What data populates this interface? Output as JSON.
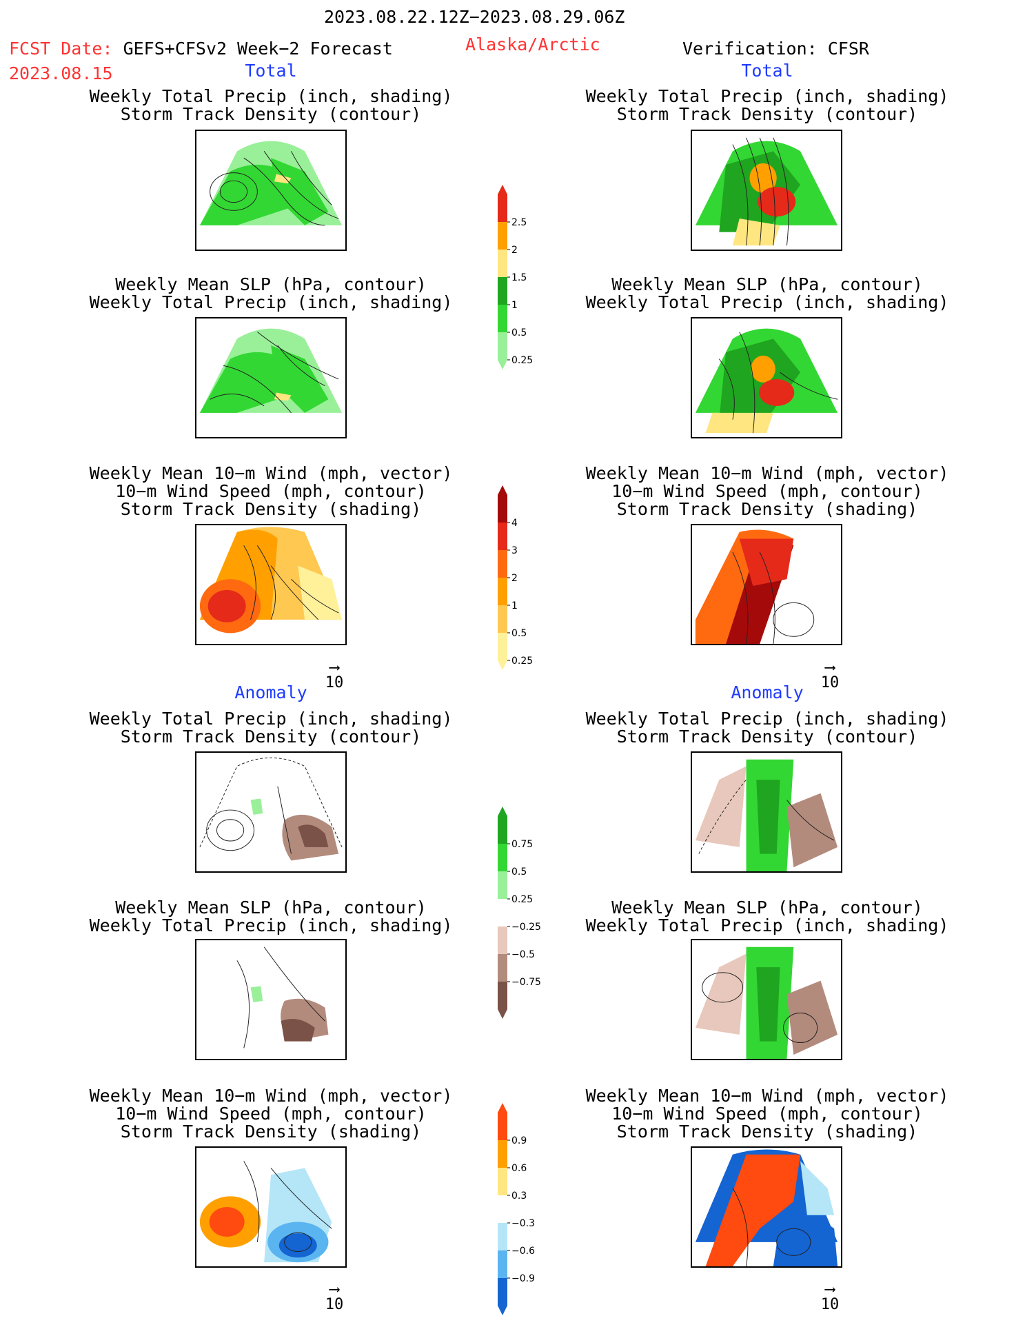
{
  "header": {
    "period": "2023.08.22.12Z−2023.08.29.06Z",
    "fcst_label": "FCST Date:",
    "fcst_model": "GEFS+CFSv2 Week−2 Forecast",
    "fcst_date": "2023.08.15",
    "region": "Alaska/Arctic",
    "verification": "Verification: CFSR"
  },
  "sections": {
    "total": "Total",
    "anomaly": "Anomaly"
  },
  "titles": {
    "precip_storm": [
      "Weekly Total Precip (inch, shading)",
      "Storm Track Density (contour)"
    ],
    "slp_precip": [
      "Weekly Mean SLP (hPa, contour)",
      "Weekly Total Precip (inch, shading)"
    ],
    "wind_storm": [
      "Weekly Mean 10−m Wind (mph, vector)",
      "10−m Wind Speed (mph, contour)",
      "Storm Track Density (shading)"
    ]
  },
  "vector_ref": "10",
  "colorbars": {
    "precip_total": {
      "labels": [
        "2.5",
        "2",
        "1.5",
        "1",
        "0.5",
        "0.25"
      ],
      "colors": [
        "#e52a1a",
        "#ffa000",
        "#ffe680",
        "#1fa51f",
        "#33d733",
        "#99f099"
      ]
    },
    "storm_total": {
      "labels": [
        "4",
        "3",
        "2",
        "1",
        "0.5",
        "0.25"
      ],
      "colors": [
        "#a50a0a",
        "#e52a1a",
        "#ff6a10",
        "#ffa000",
        "#ffc850",
        "#fff09a"
      ]
    },
    "precip_anom": {
      "labels": [
        "0.75",
        "0.5",
        "0.25",
        "−0.25",
        "−0.5",
        "−0.75"
      ],
      "colors": [
        "#1fa51f",
        "#33d733",
        "#99f099",
        "#ffffff",
        "#e8c8bc",
        "#b38b7d",
        "#7a5247"
      ]
    },
    "storm_anom": {
      "labels": [
        "0.9",
        "0.6",
        "0.3",
        "−0.3",
        "−0.6",
        "−0.9"
      ],
      "colors": [
        "#ff4a10",
        "#ffa000",
        "#ffe680",
        "#ffffff",
        "#b4e6f8",
        "#5ab4f0",
        "#1464d2"
      ]
    }
  }
}
